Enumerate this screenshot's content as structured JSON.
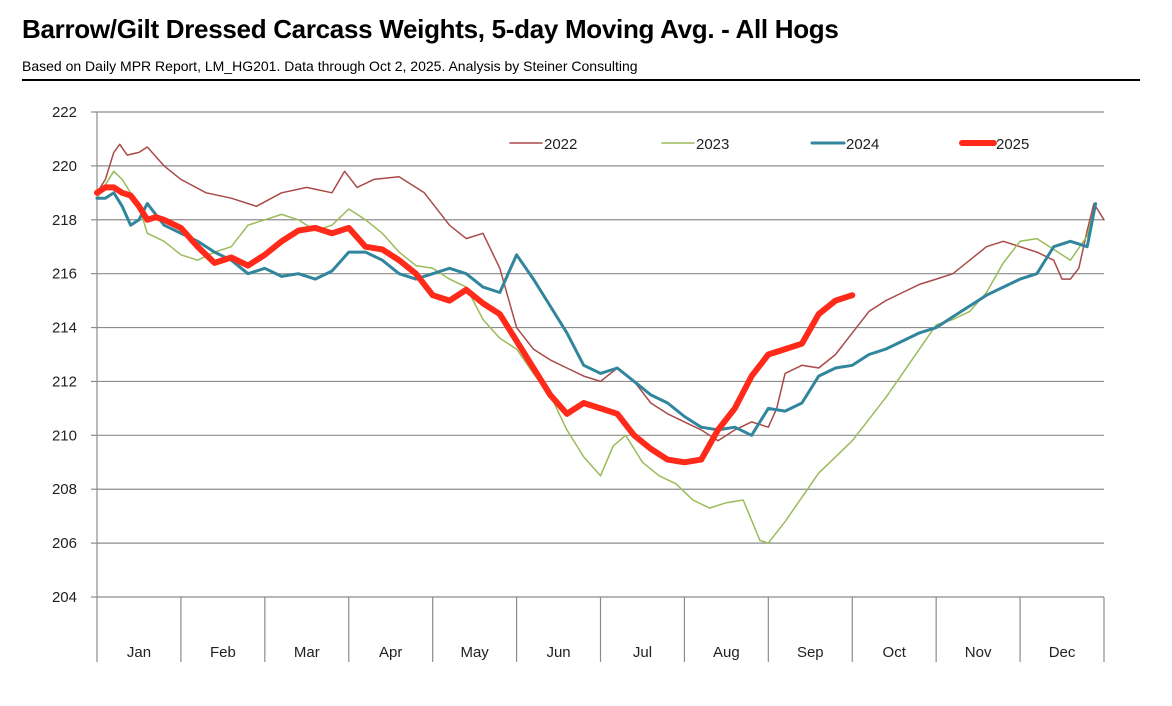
{
  "title": "Barrow/Gilt Dressed Carcass Weights, 5-day Moving Avg. - All Hogs",
  "subtitle": "Based on Daily MPR Report, LM_HG201.  Data through Oct 2, 2025.  Analysis by Steiner Consulting",
  "chart_data": {
    "type": "line",
    "title": "Barrow/Gilt Dressed Carcass Weights, 5-day Moving Avg. - All Hogs",
    "xlabel": "",
    "ylabel": "",
    "ylim": [
      204,
      222
    ],
    "xlim": [
      0,
      12
    ],
    "yticks": [
      "204",
      "206",
      "208",
      "210",
      "212",
      "214",
      "216",
      "218",
      "220",
      "222"
    ],
    "months": [
      "Jan",
      "Feb",
      "Mar",
      "Apr",
      "May",
      "Jun",
      "Jul",
      "Aug",
      "Sep",
      "Oct",
      "Nov",
      "Dec"
    ],
    "grid": true,
    "legend_position": "top",
    "series": [
      {
        "name": "2022",
        "color": "#a94a48",
        "width": 1.5,
        "x": [
          0,
          0.1,
          0.2,
          0.27,
          0.36,
          0.5,
          0.6,
          0.8,
          1.0,
          1.3,
          1.6,
          1.9,
          2.2,
          2.5,
          2.8,
          2.95,
          3.1,
          3.3,
          3.6,
          3.9,
          4.2,
          4.4,
          4.6,
          4.8,
          5.0,
          5.2,
          5.4,
          5.6,
          5.8,
          6.0,
          6.2,
          6.4,
          6.6,
          6.8,
          7.0,
          7.2,
          7.4,
          7.6,
          7.8,
          8.0,
          8.1,
          8.2,
          8.4,
          8.6,
          8.8,
          9.0,
          9.2,
          9.4,
          9.6,
          9.8,
          10.0,
          10.2,
          10.4,
          10.6,
          10.8,
          11.0,
          11.2,
          11.4,
          11.5,
          11.6,
          11.7,
          11.8,
          11.88,
          12.0
        ],
        "values": [
          219.0,
          219.5,
          220.5,
          220.8,
          220.4,
          220.5,
          220.7,
          220.0,
          219.5,
          219.0,
          218.8,
          218.5,
          219.0,
          219.2,
          219.0,
          219.8,
          219.2,
          219.5,
          219.6,
          219.0,
          217.8,
          217.3,
          217.5,
          216.2,
          214.0,
          213.2,
          212.8,
          212.5,
          212.2,
          212.0,
          212.5,
          212.0,
          211.2,
          210.8,
          210.5,
          210.2,
          209.8,
          210.2,
          210.5,
          210.3,
          211.0,
          212.3,
          212.6,
          212.5,
          213.0,
          213.8,
          214.6,
          215.0,
          215.3,
          215.6,
          215.8,
          216.0,
          216.5,
          217.0,
          217.2,
          217.0,
          216.8,
          216.5,
          215.8,
          215.8,
          216.2,
          217.6,
          218.6,
          218.0
        ]
      },
      {
        "name": "2023",
        "color": "#9bbb59",
        "width": 1.5,
        "x": [
          0,
          0.1,
          0.2,
          0.3,
          0.4,
          0.5,
          0.6,
          0.8,
          1.0,
          1.2,
          1.4,
          1.6,
          1.8,
          2.0,
          2.2,
          2.4,
          2.6,
          2.8,
          3.0,
          3.2,
          3.4,
          3.6,
          3.8,
          4.0,
          4.2,
          4.4,
          4.6,
          4.8,
          5.0,
          5.2,
          5.4,
          5.6,
          5.8,
          6.0,
          6.15,
          6.3,
          6.5,
          6.7,
          6.9,
          7.1,
          7.3,
          7.5,
          7.7,
          7.9,
          8.0,
          8.2,
          8.4,
          8.6,
          8.8,
          9.0,
          9.2,
          9.4,
          9.6,
          9.8,
          10.0,
          10.2,
          10.4,
          10.6,
          10.8,
          11.0,
          11.2,
          11.4,
          11.6,
          11.8,
          11.9
        ],
        "values": [
          218.8,
          219.3,
          219.8,
          219.5,
          219.0,
          218.5,
          217.5,
          217.2,
          216.7,
          216.5,
          216.8,
          217.0,
          217.8,
          218.0,
          218.2,
          218.0,
          217.6,
          217.8,
          218.4,
          218.0,
          217.5,
          216.8,
          216.3,
          216.2,
          215.8,
          215.5,
          214.3,
          213.6,
          213.2,
          212.3,
          211.5,
          210.2,
          209.2,
          208.5,
          209.6,
          210.0,
          209.0,
          208.5,
          208.2,
          207.6,
          207.3,
          207.5,
          207.6,
          206.1,
          206.0,
          206.8,
          207.7,
          208.6,
          209.2,
          209.8,
          210.6,
          211.4,
          212.3,
          213.2,
          214.1,
          214.3,
          214.6,
          215.3,
          216.4,
          217.2,
          217.3,
          216.9,
          216.5,
          217.4,
          218.6
        ]
      },
      {
        "name": "2024",
        "color": "#31859c",
        "width": 3,
        "x": [
          0,
          0.1,
          0.2,
          0.3,
          0.4,
          0.5,
          0.6,
          0.7,
          0.8,
          1.0,
          1.2,
          1.4,
          1.6,
          1.8,
          2.0,
          2.2,
          2.4,
          2.6,
          2.8,
          3.0,
          3.2,
          3.4,
          3.6,
          3.8,
          4.0,
          4.2,
          4.4,
          4.6,
          4.8,
          5.0,
          5.2,
          5.4,
          5.6,
          5.8,
          6.0,
          6.2,
          6.4,
          6.6,
          6.8,
          7.0,
          7.2,
          7.4,
          7.6,
          7.8,
          8.0,
          8.2,
          8.4,
          8.6,
          8.8,
          9.0,
          9.2,
          9.4,
          9.6,
          9.8,
          10.0,
          10.2,
          10.4,
          10.6,
          10.8,
          11.0,
          11.2,
          11.4,
          11.6,
          11.8,
          11.9
        ],
        "values": [
          218.8,
          218.8,
          219.0,
          218.5,
          217.8,
          218.0,
          218.6,
          218.2,
          217.8,
          217.5,
          217.2,
          216.8,
          216.5,
          216.0,
          216.2,
          215.9,
          216.0,
          215.8,
          216.1,
          216.8,
          216.8,
          216.5,
          216.0,
          215.8,
          216.0,
          216.2,
          216.0,
          215.5,
          215.3,
          216.7,
          215.8,
          214.8,
          213.8,
          212.6,
          212.3,
          212.5,
          212.0,
          211.5,
          211.2,
          210.7,
          210.3,
          210.2,
          210.3,
          210.0,
          211.0,
          210.9,
          211.2,
          212.2,
          212.5,
          212.6,
          213.0,
          213.2,
          213.5,
          213.8,
          214.0,
          214.4,
          214.8,
          215.2,
          215.5,
          215.8,
          216.0,
          217.0,
          217.2,
          217.0,
          218.6
        ]
      },
      {
        "name": "2025",
        "color": "#ff2a1a",
        "width": 6,
        "x": [
          0,
          0.1,
          0.2,
          0.3,
          0.4,
          0.5,
          0.6,
          0.7,
          0.8,
          1.0,
          1.2,
          1.4,
          1.6,
          1.8,
          2.0,
          2.2,
          2.4,
          2.6,
          2.8,
          3.0,
          3.2,
          3.4,
          3.6,
          3.8,
          4.0,
          4.2,
          4.4,
          4.6,
          4.8,
          5.0,
          5.2,
          5.4,
          5.6,
          5.8,
          6.0,
          6.2,
          6.4,
          6.6,
          6.8,
          7.0,
          7.2,
          7.4,
          7.6,
          7.8,
          8.0,
          8.2,
          8.4,
          8.6,
          8.8,
          9.0
        ],
        "values": [
          219.0,
          219.2,
          219.2,
          219.0,
          218.9,
          218.5,
          218.0,
          218.1,
          218.0,
          217.7,
          217.0,
          216.4,
          216.6,
          216.3,
          216.7,
          217.2,
          217.6,
          217.7,
          217.5,
          217.7,
          217.0,
          216.9,
          216.5,
          216.0,
          215.2,
          215.0,
          215.4,
          214.9,
          214.5,
          213.5,
          212.5,
          211.5,
          210.8,
          211.2,
          211.0,
          210.8,
          210.0,
          209.5,
          209.1,
          209.0,
          209.1,
          210.2,
          211.0,
          212.2,
          213.0,
          213.2,
          213.4,
          214.5,
          215.0,
          215.2
        ]
      }
    ]
  }
}
